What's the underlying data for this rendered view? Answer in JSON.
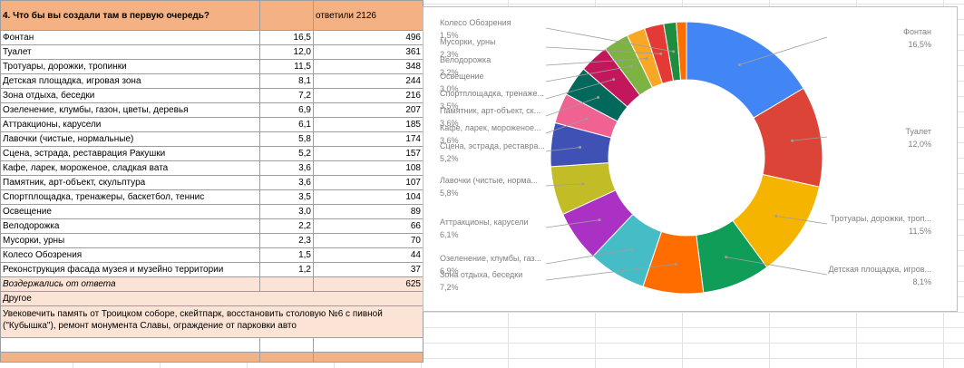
{
  "table": {
    "header": {
      "question": "4. Что бы вы создали там в первую очередь?",
      "respondents": "ответили 2126"
    },
    "rows": [
      {
        "label": "Фонтан",
        "pct": "16,5",
        "count": "496"
      },
      {
        "label": "Туалет",
        "pct": "12,0",
        "count": "361"
      },
      {
        "label": "Тротуары, дорожки, тропинки",
        "pct": "11,5",
        "count": "348"
      },
      {
        "label": "Детская площадка, игровая зона",
        "pct": "8,1",
        "count": "244"
      },
      {
        "label": "Зона отдыха, беседки",
        "pct": "7,2",
        "count": "216"
      },
      {
        "label": "Озеленение, клумбы, газон, цветы, деревья",
        "pct": "6,9",
        "count": "207"
      },
      {
        "label": "Аттракционы, карусели",
        "pct": "6,1",
        "count": "185"
      },
      {
        "label": "Лавочки (чистые, нормальные)",
        "pct": "5,8",
        "count": "174"
      },
      {
        "label": "Сцена, эстрада, реставрация Ракушки",
        "pct": "5,2",
        "count": "157"
      },
      {
        "label": "Кафе, ларек, мороженое, сладкая вата",
        "pct": "3,6",
        "count": "108"
      },
      {
        "label": "Памятник, арт-объект, скульптура",
        "pct": "3,6",
        "count": "107"
      },
      {
        "label": "Спортплощадка, тренажеры, баскетбол, теннис",
        "pct": "3,5",
        "count": "104"
      },
      {
        "label": "Освещение",
        "pct": "3,0",
        "count": "89"
      },
      {
        "label": "Велодорожка",
        "pct": "2,2",
        "count": "66"
      },
      {
        "label": "Мусорки, урны",
        "pct": "2,3",
        "count": "70"
      },
      {
        "label": "Колесо Обозрения",
        "pct": "1,5",
        "count": "44"
      },
      {
        "label": "Реконструкция фасада музея и музейно территории",
        "pct": "1,2",
        "count": "37"
      }
    ],
    "abstained": {
      "label": "Воздержались от ответа",
      "count": "625"
    },
    "other_label": "Другое",
    "other_text": "Увековечить память от Троицком соборе, скейтпарк, восстановить столовую №6 с пивной (\"Кубышка\"), ремонт монумента Славы, ограждение от парковки авто"
  },
  "chart_data": {
    "type": "pie",
    "donut": true,
    "legend": "labels outside slices with leader lines",
    "categories": [
      "Фонтан",
      "Туалет",
      "Тротуары, дорожки, троп...",
      "Детская площадка, игров...",
      "Зона отдыха, беседки",
      "Озеленение, клумбы, газ...",
      "Аттракционы, карусели",
      "Лавочки (чистые, норма...",
      "Сцена, эстрада, реставра...",
      "Кафе, ларек, мороженое...",
      "Памятник, арт-объект, ск...",
      "Спортплощадка, тренаже...",
      "Освещение",
      "Велодорожка",
      "Мусорки, урны",
      "Колесо Обозрения",
      ""
    ],
    "values": [
      16.5,
      12.0,
      11.5,
      8.1,
      7.2,
      6.9,
      6.1,
      5.8,
      5.2,
      3.6,
      3.6,
      3.5,
      3.0,
      2.2,
      2.3,
      1.5,
      1.2
    ],
    "value_labels": [
      "16,5%",
      "12,0%",
      "11,5%",
      "8,1%",
      "7,2%",
      "6,9%",
      "6,1%",
      "5,8%",
      "5,2%",
      "3,6%",
      "3,6%",
      "3,5%",
      "3,0%",
      "2,2%",
      "2,3%",
      "1,5%",
      ""
    ],
    "colors": [
      "#4285f4",
      "#db4437",
      "#f4b400",
      "#0f9d58",
      "#ff6d01",
      "#46bdc6",
      "#ab30c4",
      "#c2bc26",
      "#3f51b5",
      "#f06292",
      "#00695c",
      "#c2185b",
      "#7cb342",
      "#f9a825",
      "#e53935",
      "#1e8e3e",
      "#ff6d01"
    ]
  }
}
